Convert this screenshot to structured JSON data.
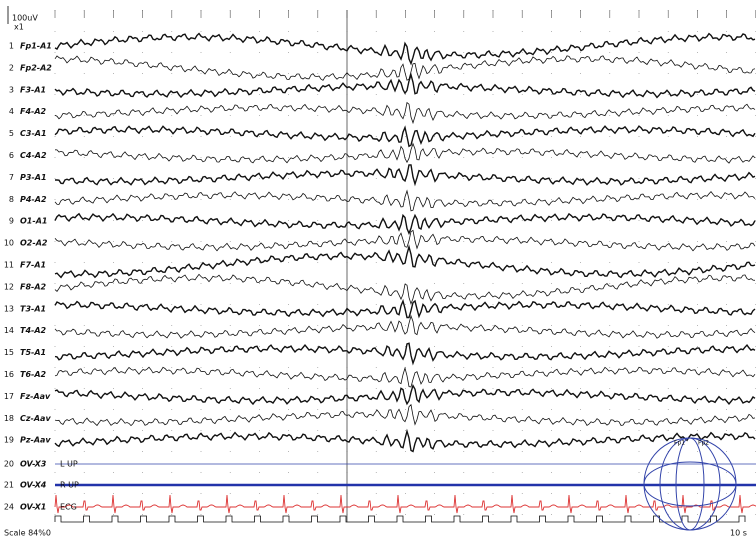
{
  "scale": {
    "amplitude": "100uV",
    "gain": "x1"
  },
  "channels": [
    {
      "number": "1",
      "label": "Fp1-A1"
    },
    {
      "number": "2",
      "label": "Fp2-A2"
    },
    {
      "number": "3",
      "label": "F3-A1"
    },
    {
      "number": "4",
      "label": "F4-A2"
    },
    {
      "number": "5",
      "label": "C3-A1"
    },
    {
      "number": "6",
      "label": "C4-A2"
    },
    {
      "number": "7",
      "label": "P3-A1"
    },
    {
      "number": "8",
      "label": "P4-A2"
    },
    {
      "number": "9",
      "label": "O1-A1"
    },
    {
      "number": "10",
      "label": "O2-A2"
    },
    {
      "number": "11",
      "label": "F7-A1"
    },
    {
      "number": "12",
      "label": "F8-A2"
    },
    {
      "number": "13",
      "label": "T3-A1"
    },
    {
      "number": "14",
      "label": "T4-A2"
    },
    {
      "number": "15",
      "label": "T5-A1"
    },
    {
      "number": "16",
      "label": "T6-A2"
    },
    {
      "number": "17",
      "label": "Fz-Aav"
    },
    {
      "number": "18",
      "label": "Cz-Aav"
    },
    {
      "number": "19",
      "label": "Pz-Aav"
    },
    {
      "number": "20",
      "label": "OV-X3"
    },
    {
      "number": "21",
      "label": "OV-X4"
    },
    {
      "number": "24",
      "label": "OV-X1"
    }
  ],
  "trace_labels": {
    "left_eye": "L UP",
    "right_eye": "R UP",
    "ecg": "ECG"
  },
  "footer": {
    "scale": "Scale 84%0",
    "time": "10 s"
  },
  "head_map": {
    "left": "Fp1",
    "right": "Fp2"
  }
}
